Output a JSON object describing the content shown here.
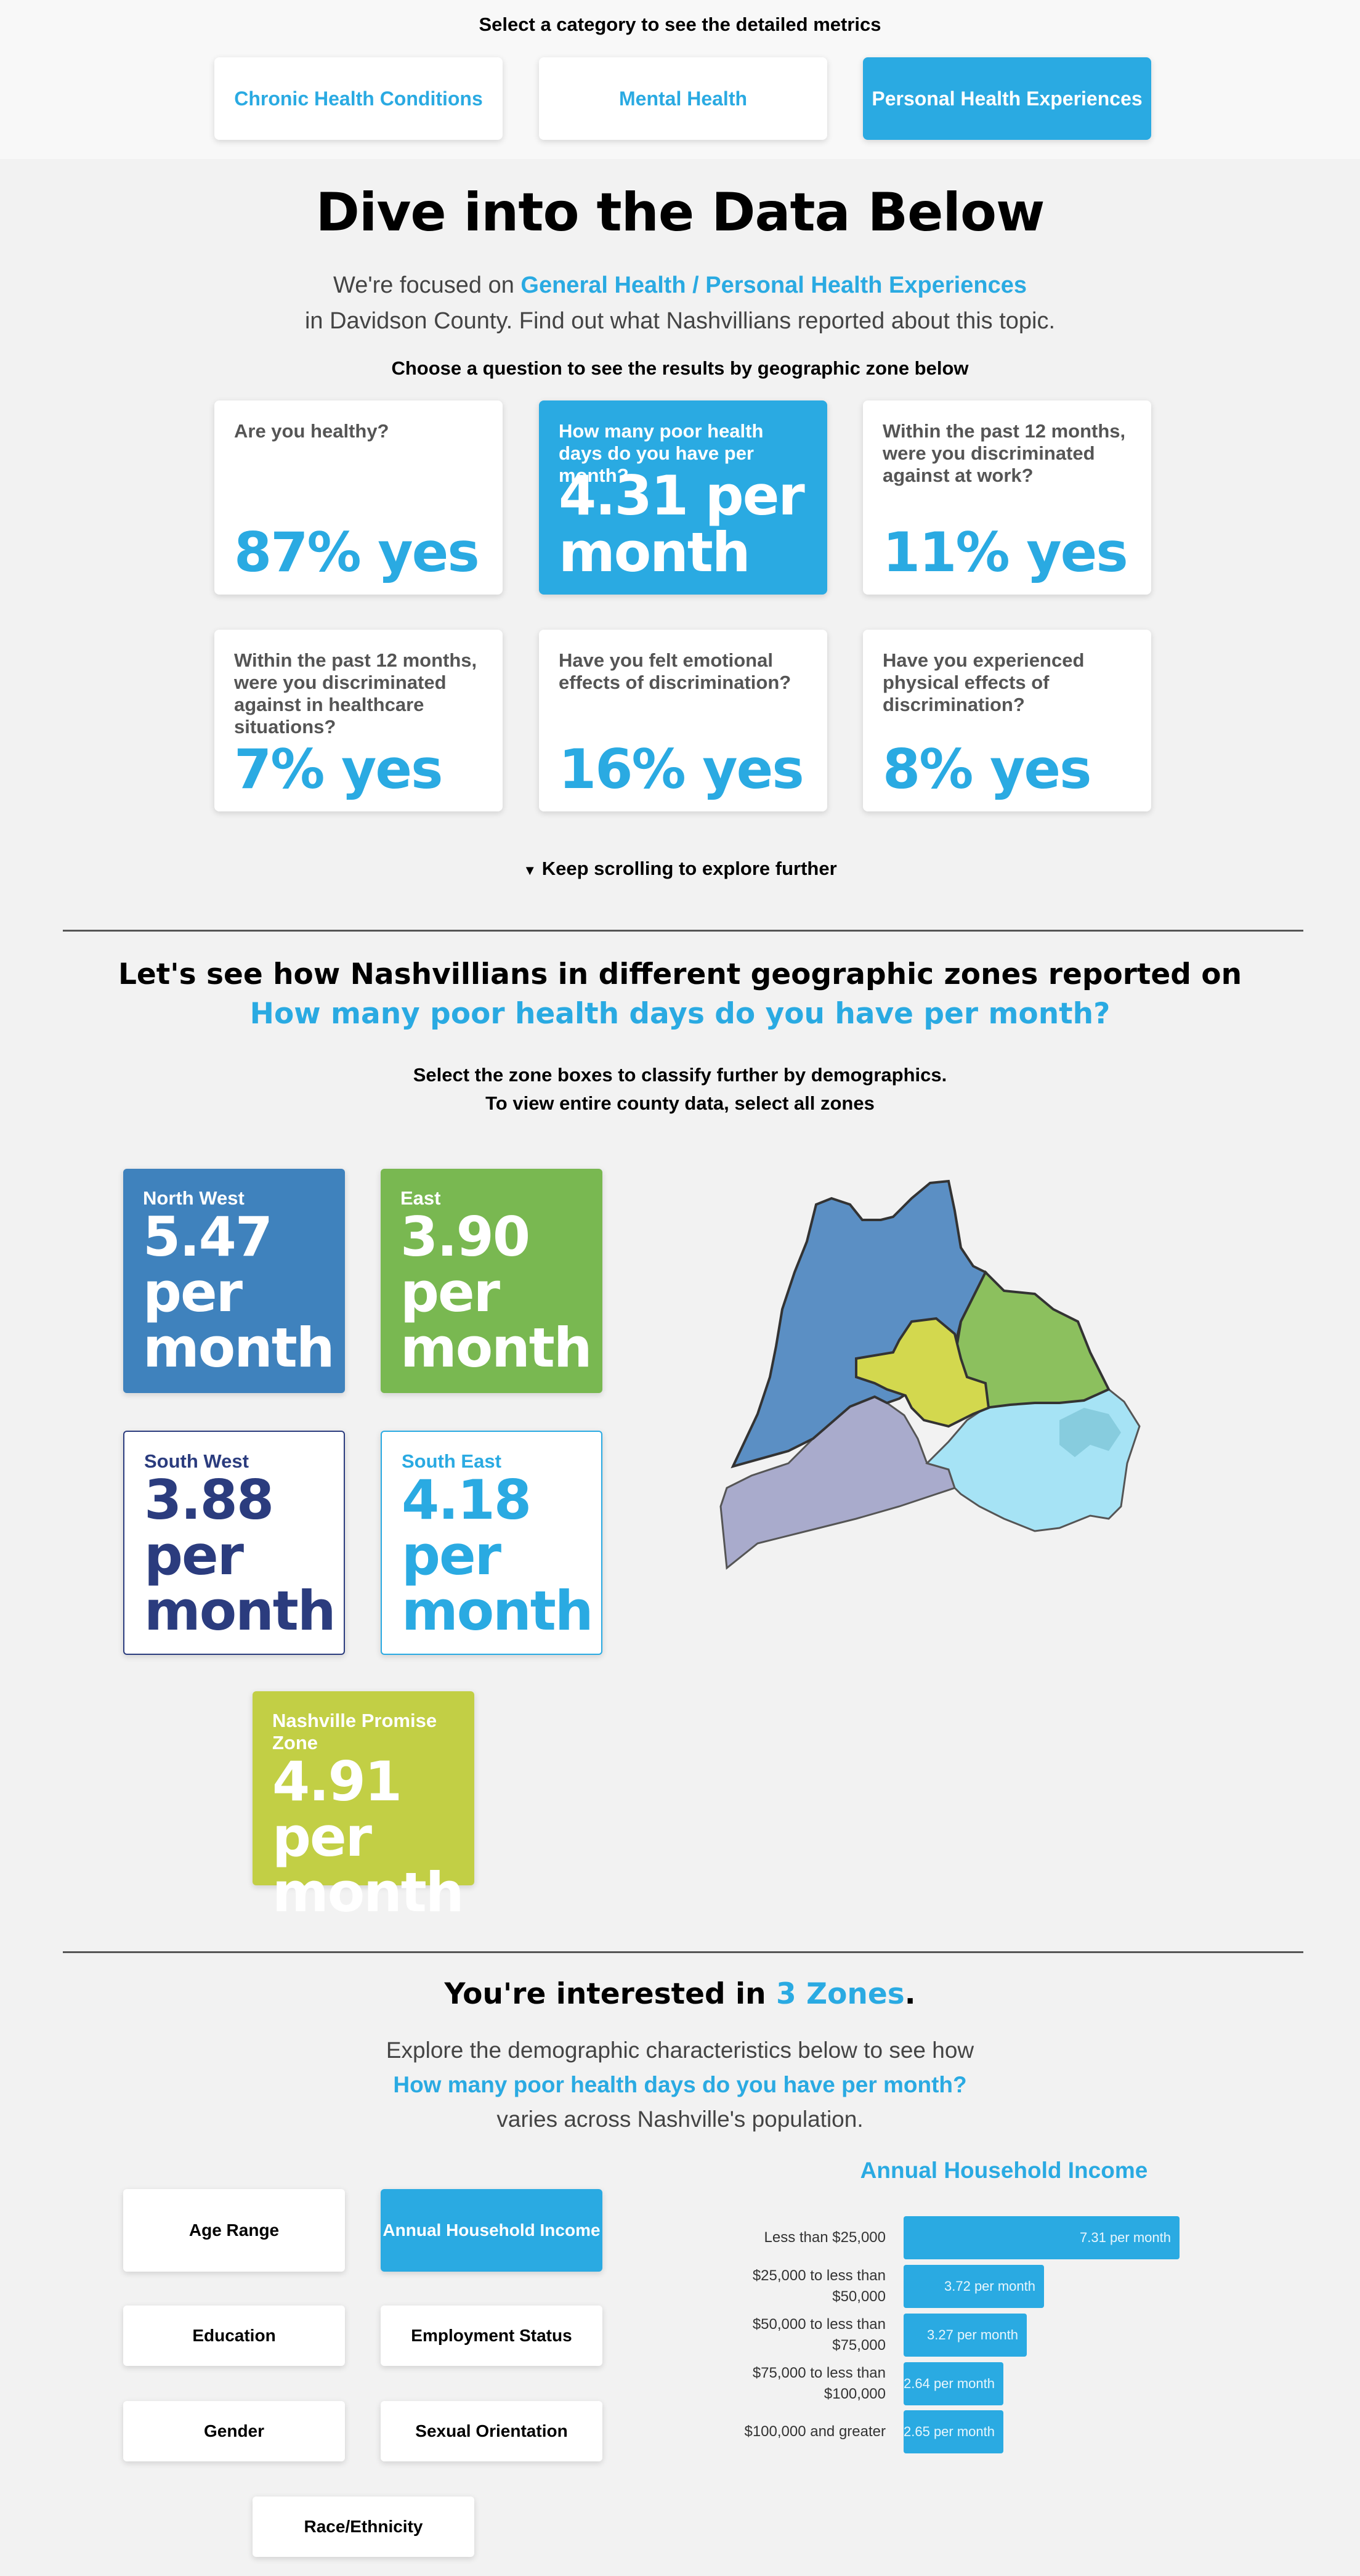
{
  "category": {
    "prompt": "Select a category to see the detailed metrics",
    "buttons": [
      "Chronic Health Conditions",
      "Mental Health",
      "Personal Health Experiences"
    ],
    "active_index": 2
  },
  "hero": {
    "title": "Dive into the Data Below",
    "lead_prefix": "We're focused on ",
    "lead_topic": "General Health / Personal Health Experiences",
    "lead_line2": "in Davidson County. Find out what Nashvillians reported about this topic.",
    "question_prompt": "Choose a question to see the results by geographic zone below"
  },
  "questions": [
    {
      "question": "Are you healthy?",
      "value": "87% yes"
    },
    {
      "question": "How many poor health days do you have per month?",
      "value": "4.31 per month",
      "active": true
    },
    {
      "question": "Within the past 12 months, were you discriminated against at work?",
      "value": "11% yes"
    },
    {
      "question": "Within the past 12 months, were you discriminated against in healthcare situations?",
      "value": "7% yes"
    },
    {
      "question": "Have you felt emotional effects of discrimination?",
      "value": "16% yes"
    },
    {
      "question": "Have you experienced physical effects of discrimination?",
      "value": "8% yes"
    }
  ],
  "scroll_hint": "Keep scrolling to explore further",
  "zones_section": {
    "heading": "Let's see how Nashvillians in different geographic zones reported on",
    "question": "How many poor health days do you have per month?",
    "instruction_1": "Select the zone boxes to classify further by demographics.",
    "instruction_2": "To view entire county data, select all zones"
  },
  "zones": [
    {
      "name": "North West",
      "value": "5.47 per month",
      "color": "#3f82bd",
      "selected": true
    },
    {
      "name": "East",
      "value": "3.90 per month",
      "color": "#79b851",
      "selected": true
    },
    {
      "name": "South West",
      "value": "3.88 per month",
      "color": "#2b3c7e",
      "selected": false
    },
    {
      "name": "South East",
      "value": "4.18 per month",
      "color": "#2aaae2",
      "selected": false
    },
    {
      "name": "Nashville Promise Zone",
      "value": "4.91 per month",
      "color": "#c2cf45",
      "selected": true
    }
  ],
  "interest": {
    "prefix": "You're interested in ",
    "count": "3 Zones",
    "suffix": ".",
    "line1": "Explore the demographic characteristics below to see how",
    "question": "How many poor health days do you have per month?",
    "line3": "varies across Nashville's population."
  },
  "demographics": [
    "Age Range",
    "Annual Household Income",
    "Education",
    "Employment Status",
    "Gender",
    "Sexual Orientation",
    "Race/Ethnicity"
  ],
  "demographics_active_index": 1,
  "chart_data": {
    "type": "bar",
    "orientation": "horizontal",
    "title": "Annual Household Income",
    "categories": [
      "Less than $25,000",
      "$25,000 to less than $50,000",
      "$50,000 to less than $75,000",
      "$75,000 to less than $100,000",
      "$100,000 and greater"
    ],
    "values": [
      7.31,
      3.72,
      3.27,
      2.64,
      2.65
    ],
    "value_labels": [
      "7.31 per month",
      "3.72 per month",
      "3.27 per month",
      "2.64 per month",
      "2.65 per month"
    ],
    "color": "#2aaae2"
  }
}
